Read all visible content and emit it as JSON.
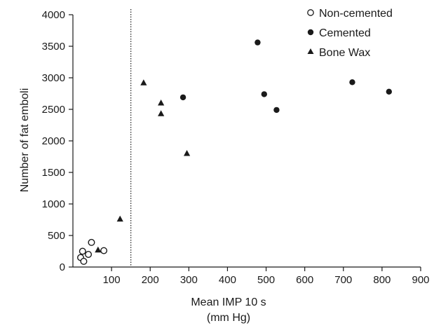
{
  "chart_data": {
    "type": "scatter",
    "title": "",
    "xlabel_line1": "Mean IMP 10 s",
    "xlabel_line2": "(mm Hg)",
    "ylabel": "Number of fat emboli",
    "xlim": [
      0,
      900
    ],
    "ylim": [
      0,
      4000
    ],
    "x_ticks": [
      100,
      200,
      300,
      400,
      500,
      600,
      700,
      800,
      900
    ],
    "y_ticks": [
      0,
      500,
      1000,
      1500,
      2000,
      2500,
      3000,
      3500,
      4000
    ],
    "grid": false,
    "legend_position": "top-right",
    "threshold_x": 150,
    "series": [
      {
        "name": "Non-cemented",
        "marker": "open-circle",
        "color": "#1a1a1a",
        "points": [
          {
            "x": 20,
            "y": 150
          },
          {
            "x": 25,
            "y": 250
          },
          {
            "x": 28,
            "y": 90
          },
          {
            "x": 40,
            "y": 200
          },
          {
            "x": 48,
            "y": 390
          },
          {
            "x": 80,
            "y": 260
          }
        ]
      },
      {
        "name": "Cemented",
        "marker": "filled-circle",
        "color": "#1a1a1a",
        "points": [
          {
            "x": 285,
            "y": 2690
          },
          {
            "x": 478,
            "y": 3560
          },
          {
            "x": 495,
            "y": 2740
          },
          {
            "x": 527,
            "y": 2490
          },
          {
            "x": 723,
            "y": 2930
          },
          {
            "x": 818,
            "y": 2780
          }
        ]
      },
      {
        "name": "Bone Wax",
        "marker": "triangle",
        "color": "#1a1a1a",
        "points": [
          {
            "x": 65,
            "y": 270
          },
          {
            "x": 122,
            "y": 760
          },
          {
            "x": 183,
            "y": 2920
          },
          {
            "x": 228,
            "y": 2600
          },
          {
            "x": 228,
            "y": 2430
          },
          {
            "x": 295,
            "y": 1800
          }
        ]
      }
    ]
  }
}
